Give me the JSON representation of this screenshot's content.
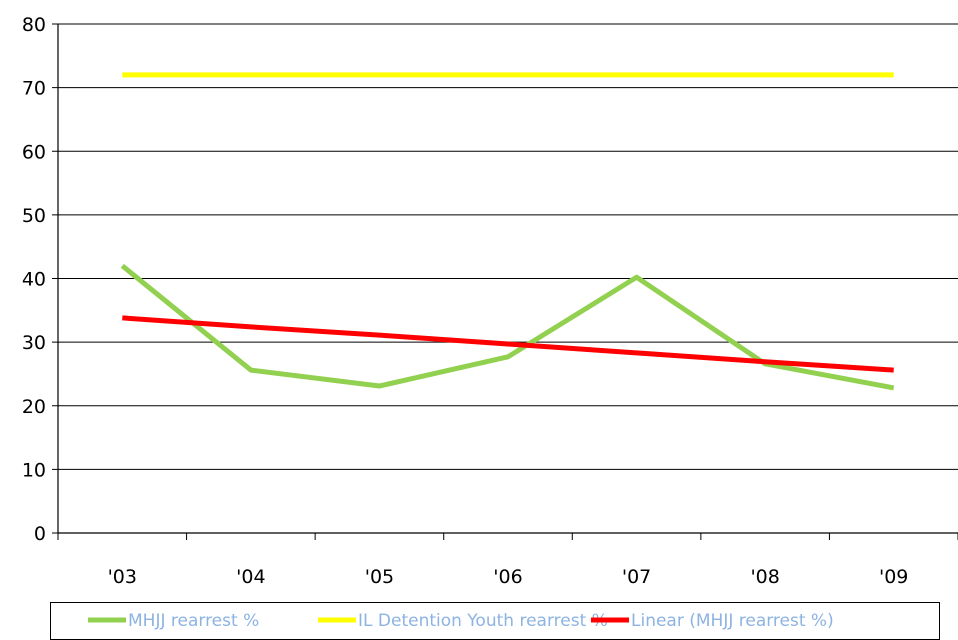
{
  "chart_data": {
    "type": "line",
    "categories": [
      "'03",
      "'04",
      "'05",
      "'06",
      "'07",
      "'08",
      "'09"
    ],
    "series": [
      {
        "name": "MHJJ rearrest %",
        "values": [
          42,
          25.6,
          23.1,
          27.7,
          40.2,
          26.6,
          22.8
        ],
        "color": "#92d050"
      },
      {
        "name": "IL Detention Youth rearrest %",
        "values": [
          72,
          72,
          72,
          72,
          72,
          72,
          72
        ],
        "color": "#ffff00"
      },
      {
        "name": "Linear (MHJJ rearrest %)",
        "values": [
          33.8,
          32.4,
          31.1,
          29.7,
          28.3,
          26.9,
          25.6
        ],
        "color": "#ff0000"
      }
    ],
    "ylim": [
      0,
      80
    ],
    "yticks": [
      0,
      10,
      20,
      30,
      40,
      50,
      60,
      70,
      80
    ],
    "ytick_labels": [
      "0",
      "10",
      "20",
      "30",
      "40",
      "50",
      "60",
      "70",
      "80"
    ],
    "grid": true,
    "legend_position": "bottom",
    "title": "",
    "xlabel": "",
    "ylabel": ""
  }
}
